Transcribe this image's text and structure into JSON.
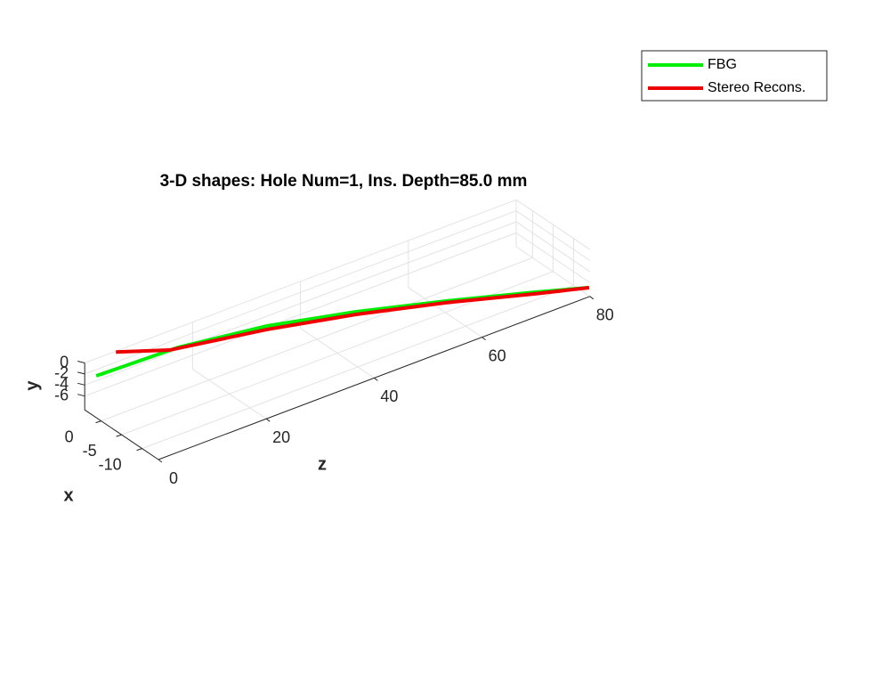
{
  "chart_data": {
    "type": "line3d",
    "title": "3-D shapes: Hole Num=1, Ins. Depth=85.0 mm",
    "xlabel": "x",
    "ylabel": "y",
    "zlabel": "z",
    "xlim": [
      -14,
      4
    ],
    "ylim": [
      -8.5,
      0
    ],
    "zlim": [
      0,
      80
    ],
    "xticks": [
      -10,
      -5,
      0
    ],
    "yticks": [
      -6,
      -4,
      -2,
      0
    ],
    "zticks": [
      0,
      20,
      40,
      60,
      80
    ],
    "grid": true,
    "series": [
      {
        "name": "FBG",
        "color": "#00ee00",
        "z": [
          0,
          13.3,
          27.7,
          42.2,
          56.6,
          71.1,
          80
        ],
        "x": [
          1.2,
          -1.29,
          -3.99,
          -6.71,
          -9.41,
          -12.13,
          -13.8
        ],
        "y": [
          -0.94,
          0.55,
          0.47,
          -0.95,
          -3.0,
          -5.4,
          -7.0
        ]
      },
      {
        "name": "Stereo Recons.",
        "color": "#ee0000",
        "z": [
          3.2,
          11.9,
          27.7,
          42.2,
          56.6,
          71.1,
          80
        ],
        "x": [
          0.6,
          -1.03,
          -3.99,
          -6.71,
          -9.41,
          -12.13,
          -13.8
        ],
        "y": [
          2.5,
          0.45,
          -0.18,
          -1.44,
          -3.31,
          -5.69,
          -7.02
        ]
      }
    ]
  }
}
